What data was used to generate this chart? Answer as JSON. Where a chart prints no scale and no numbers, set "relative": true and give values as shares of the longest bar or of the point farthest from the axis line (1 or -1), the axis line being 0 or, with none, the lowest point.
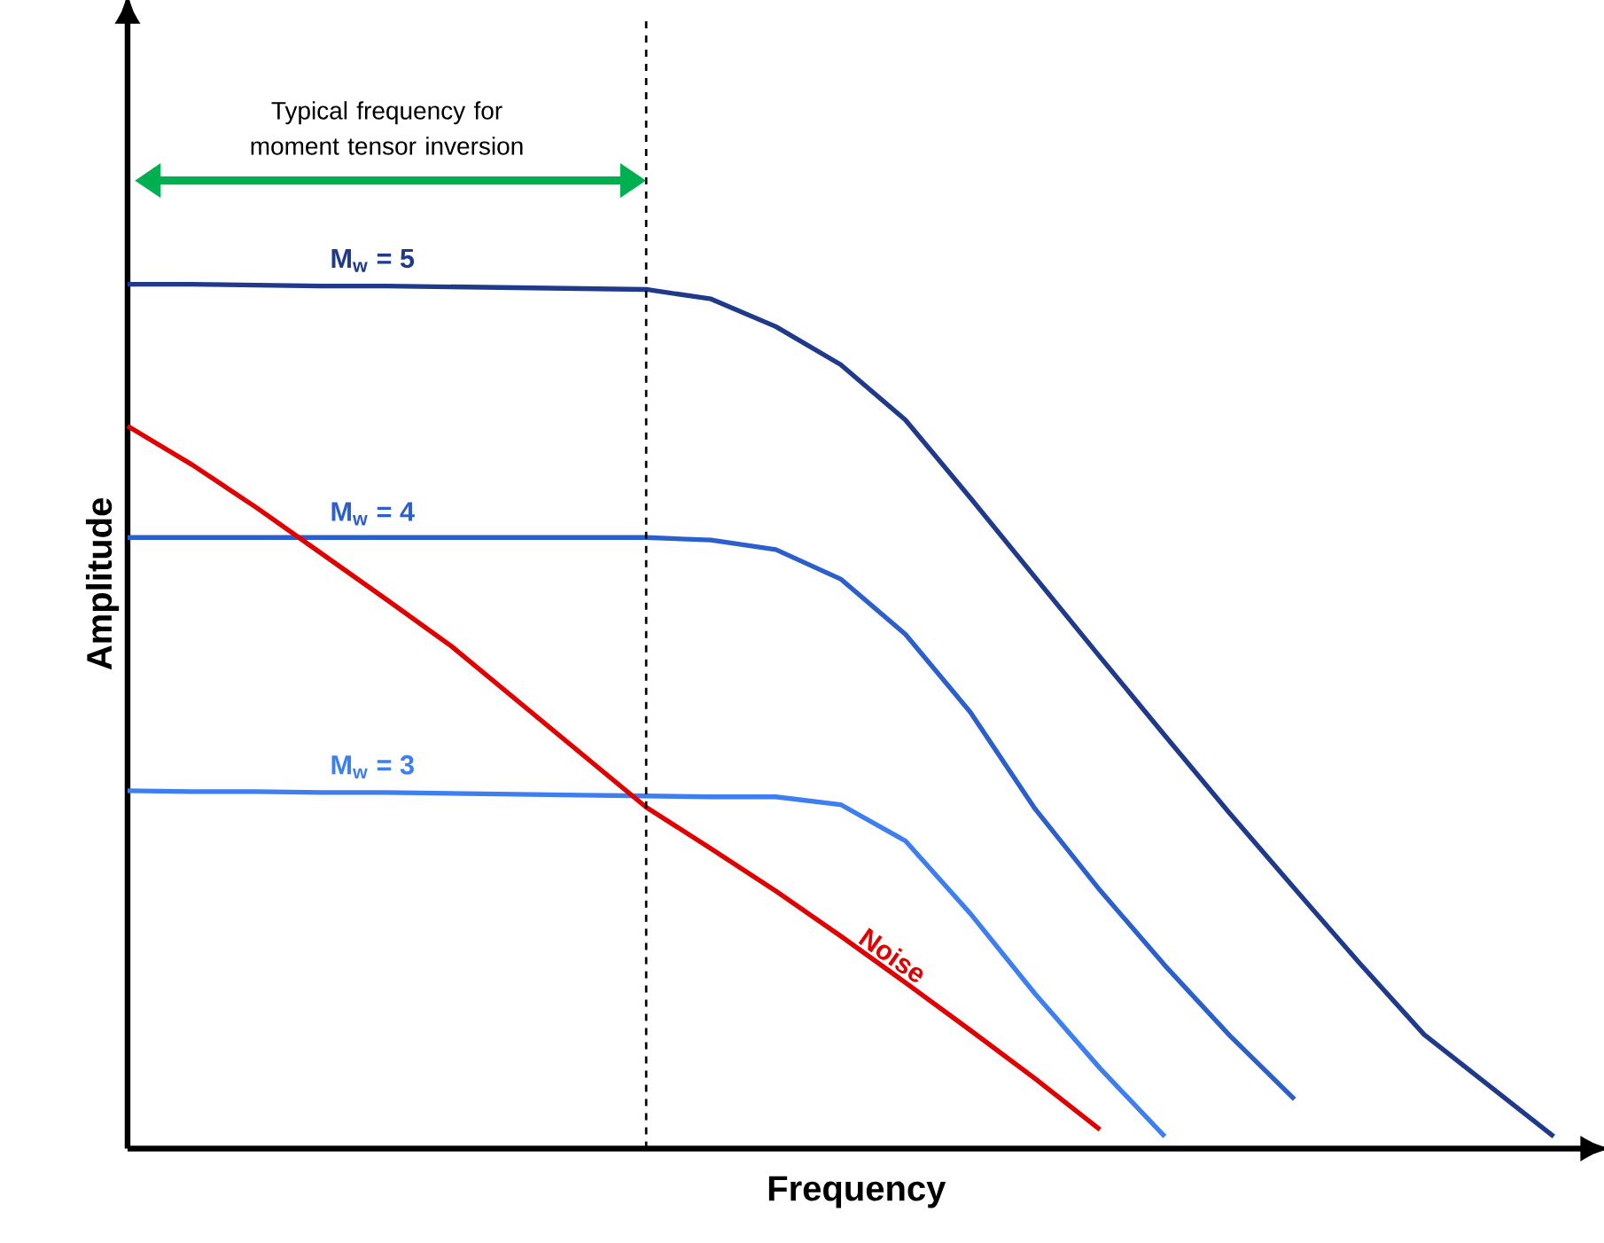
{
  "chart_data": {
    "type": "line",
    "relative": true,
    "xlabel": "Frequency",
    "ylabel": "Amplitude",
    "line_style": "solid",
    "marker": "none",
    "categories": [
      null,
      null,
      null,
      null,
      null,
      null,
      null,
      null,
      null,
      null,
      null,
      null,
      null,
      null,
      null,
      null,
      null,
      null,
      null,
      null,
      null,
      null,
      null
    ],
    "series": [
      {
        "name": "M$_{w}$ = 5",
        "color": "#1f3a8a",
        "values": [
          1.0,
          1.0,
          0.999,
          0.998,
          0.998,
          0.997,
          0.996,
          0.995,
          0.994,
          0.983,
          0.951,
          0.907,
          0.843,
          0.753,
          0.661,
          0.569,
          0.478,
          0.388,
          0.301,
          0.215,
          0.132,
          0.073,
          0.014
        ]
      },
      {
        "name": "M$_{w}$ = 4",
        "color": "#2b5fcc",
        "values": [
          0.707,
          0.707,
          0.707,
          0.707,
          0.707,
          0.707,
          0.707,
          0.707,
          0.707,
          0.704,
          0.693,
          0.659,
          0.595,
          0.505,
          0.393,
          0.299,
          0.212,
          0.131,
          0.057,
          null,
          null,
          null,
          null
        ]
      },
      {
        "name": "M$_{w}$ = 3",
        "color": "#3d7ef0",
        "values": [
          0.414,
          0.413,
          0.413,
          0.412,
          0.412,
          0.411,
          0.41,
          0.409,
          0.408,
          0.407,
          0.407,
          0.398,
          0.356,
          0.272,
          0.179,
          0.093,
          0.014,
          null,
          null,
          null,
          null,
          null,
          null
        ]
      },
      {
        "name": "Noise",
        "color": "#e00000",
        "values": [
          0.836,
          0.791,
          0.741,
          0.688,
          0.635,
          0.581,
          0.519,
          0.457,
          0.395,
          0.347,
          0.298,
          0.246,
          0.192,
          0.137,
          0.081,
          0.022,
          null,
          null,
          null,
          null,
          null,
          null,
          null
        ]
      }
    ],
    "annotations": [
      "Typical frequency for moment tensor inversion"
    ]
  }
}
